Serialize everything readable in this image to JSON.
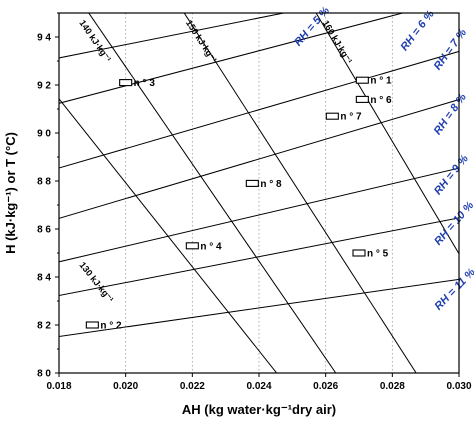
{
  "chart_data": {
    "type": "scatter",
    "xlabel": "AH (kg water·kg⁻¹dry air)",
    "ylabel": "H (kJ·kg⁻¹) or T (°C)",
    "xlim": [
      0.018,
      0.03
    ],
    "ylim": [
      80,
      95
    ],
    "x_ticks": [
      "0.018",
      "0.020",
      "0.022",
      "0.024",
      "0.026",
      "0.028",
      "0.030"
    ],
    "y_ticks": [
      "8 0",
      "8 2",
      "8 4",
      "8 6",
      "8 8",
      "9 0",
      "9 2",
      "9 4"
    ],
    "grid": "vertical dotted",
    "points": [
      {
        "label": "n ° 1",
        "x": 0.0271,
        "y": 92.2
      },
      {
        "label": "n ° 2",
        "x": 0.019,
        "y": 82.0
      },
      {
        "label": "n ° 3",
        "x": 0.02,
        "y": 92.1
      },
      {
        "label": "n ° 4",
        "x": 0.022,
        "y": 85.3
      },
      {
        "label": "n ° 5",
        "x": 0.027,
        "y": 85.0
      },
      {
        "label": "n ° 6",
        "x": 0.0271,
        "y": 91.4
      },
      {
        "label": "n ° 7",
        "x": 0.0262,
        "y": 90.7
      },
      {
        "label": "n ° 8",
        "x": 0.0238,
        "y": 87.9
      }
    ],
    "enthalpy_lines": [
      {
        "label": "130 kJ·kg⁻¹",
        "points": [
          [
            0.0179,
            91.6
          ],
          [
            0.0259,
            77.6
          ]
        ]
      },
      {
        "label": "140 kJ·kg⁻¹",
        "points": [
          [
            0.0183,
            96.2
          ],
          [
            0.0265,
            79.6
          ]
        ]
      },
      {
        "label": "150 kJ·kg⁻¹",
        "points": [
          [
            0.0212,
            96.2
          ],
          [
            0.0289,
            79.6
          ]
        ]
      },
      {
        "label": "160 kJ·kg⁻¹",
        "points": [
          [
            0.0252,
            96.2
          ],
          [
            0.0305,
            83.8
          ]
        ]
      }
    ],
    "rh_lines": [
      {
        "label": "RH = 5 %",
        "points": [
          [
            0.0179,
            93.1
          ],
          [
            0.0305,
            96.6
          ]
        ]
      },
      {
        "label": "RH = 6 %",
        "points": [
          [
            0.0179,
            91.2
          ],
          [
            0.0305,
            95.8
          ]
        ]
      },
      {
        "label": "RH = 7 %",
        "points": [
          [
            0.0179,
            88.5
          ],
          [
            0.0305,
            93.6
          ]
        ]
      },
      {
        "label": "RH = 8 %",
        "points": [
          [
            0.0179,
            86.4
          ],
          [
            0.0305,
            91.6
          ]
        ]
      },
      {
        "label": "RH = 9 %",
        "points": [
          [
            0.0179,
            84.6
          ],
          [
            0.0305,
            88.7
          ]
        ]
      },
      {
        "label": "RH = 10 %",
        "points": [
          [
            0.0179,
            83.2
          ],
          [
            0.0305,
            86.6
          ]
        ]
      },
      {
        "label": "RH = 11 %",
        "points": [
          [
            0.0179,
            81.5
          ],
          [
            0.0305,
            84.0
          ]
        ]
      }
    ]
  }
}
